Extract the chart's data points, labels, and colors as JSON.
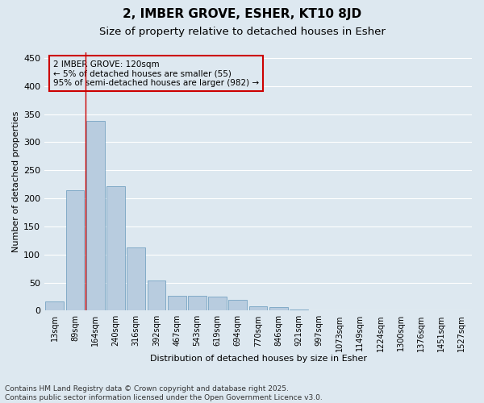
{
  "title": "2, IMBER GROVE, ESHER, KT10 8JD",
  "subtitle": "Size of property relative to detached houses in Esher",
  "xlabel": "Distribution of detached houses by size in Esher",
  "ylabel": "Number of detached properties",
  "categories": [
    "13sqm",
    "89sqm",
    "164sqm",
    "240sqm",
    "316sqm",
    "392sqm",
    "467sqm",
    "543sqm",
    "619sqm",
    "694sqm",
    "770sqm",
    "846sqm",
    "921sqm",
    "997sqm",
    "1073sqm",
    "1149sqm",
    "1224sqm",
    "1300sqm",
    "1376sqm",
    "1451sqm",
    "1527sqm"
  ],
  "values": [
    16,
    215,
    338,
    221,
    112,
    54,
    27,
    26,
    25,
    19,
    8,
    6,
    2,
    0,
    0,
    0,
    0,
    0,
    0,
    0,
    0
  ],
  "bar_color": "#b8ccdf",
  "bar_edge_color": "#6699bb",
  "vline_x": 1.5,
  "vline_color": "#cc0000",
  "annotation_text": "2 IMBER GROVE: 120sqm\n← 5% of detached houses are smaller (55)\n95% of semi-detached houses are larger (982) →",
  "annotation_box_color": "#cc0000",
  "ylim": [
    0,
    460
  ],
  "yticks": [
    0,
    50,
    100,
    150,
    200,
    250,
    300,
    350,
    400,
    450
  ],
  "footnote": "Contains HM Land Registry data © Crown copyright and database right 2025.\nContains public sector information licensed under the Open Government Licence v3.0.",
  "background_color": "#dde8f0",
  "grid_color": "#ffffff",
  "title_fontsize": 11,
  "subtitle_fontsize": 9.5,
  "label_fontsize": 8,
  "tick_fontsize": 7,
  "footnote_fontsize": 6.5
}
